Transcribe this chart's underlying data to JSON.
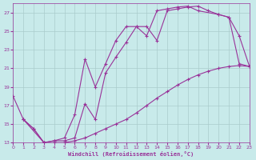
{
  "xlabel": "Windchill (Refroidissement éolien,°C)",
  "bg_color": "#c8eaea",
  "line_color": "#993399",
  "grid_color": "#aacccc",
  "xmin": 0,
  "xmax": 23,
  "ymin": 13,
  "ymax": 28,
  "yticks": [
    13,
    15,
    17,
    19,
    21,
    23,
    25,
    27
  ],
  "xticks": [
    0,
    1,
    2,
    3,
    4,
    5,
    6,
    7,
    8,
    9,
    10,
    11,
    12,
    13,
    14,
    15,
    16,
    17,
    18,
    19,
    20,
    21,
    22,
    23
  ],
  "curve1_x": [
    0,
    1,
    2,
    3,
    4,
    5,
    6,
    7,
    8,
    9,
    10,
    11,
    12,
    13,
    14,
    15,
    16,
    17,
    18,
    19,
    20,
    21,
    22,
    23
  ],
  "curve1_y": [
    18.0,
    15.5,
    14.5,
    13.0,
    13.0,
    13.0,
    13.2,
    13.5,
    14.0,
    14.5,
    15.0,
    15.5,
    16.2,
    17.0,
    17.8,
    18.5,
    19.2,
    19.8,
    20.3,
    20.7,
    21.0,
    21.2,
    21.3,
    21.2
  ],
  "curve2_x": [
    1,
    2,
    3,
    4,
    5,
    6,
    7,
    8,
    9,
    10,
    11,
    12,
    13,
    14,
    15,
    16,
    17,
    18,
    19,
    20,
    21,
    22,
    23
  ],
  "curve2_y": [
    15.5,
    14.5,
    13.0,
    13.2,
    13.2,
    13.5,
    17.2,
    15.5,
    20.5,
    22.2,
    23.8,
    25.5,
    25.5,
    24.0,
    27.2,
    27.4,
    27.6,
    27.7,
    27.2,
    26.8,
    26.5,
    21.5,
    21.2
  ],
  "curve3_x": [
    1,
    3,
    4,
    5,
    6,
    7,
    8,
    9,
    10,
    11,
    12,
    13,
    14,
    15,
    16,
    17,
    18,
    20,
    21,
    22,
    23
  ],
  "curve3_y": [
    15.5,
    13.0,
    13.2,
    13.5,
    16.0,
    22.0,
    19.0,
    21.5,
    24.0,
    25.5,
    25.5,
    24.5,
    27.2,
    27.4,
    27.6,
    27.7,
    27.2,
    26.8,
    26.5,
    24.5,
    21.2
  ]
}
